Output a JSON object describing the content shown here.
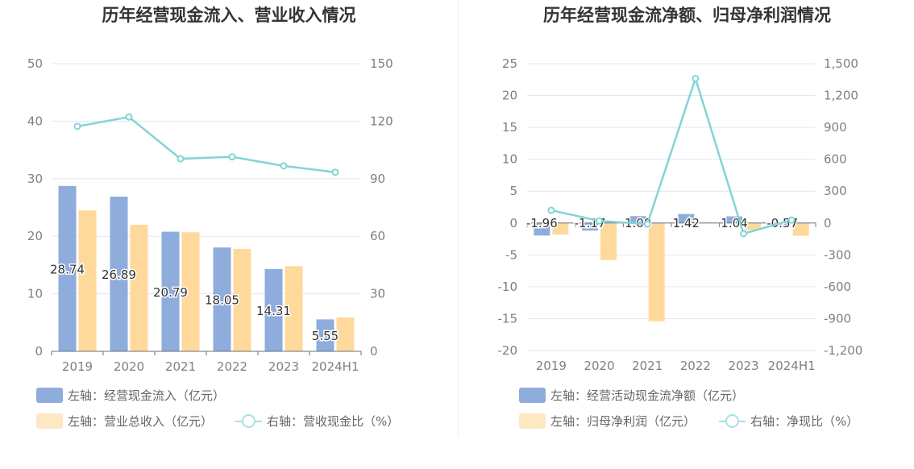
{
  "colors": {
    "bar_blue": "#8eacdc",
    "bar_orange": "#ffd99b",
    "line": "#83d4d8",
    "legend_orange": "#fde8c4",
    "legend_line": "#a9e0e6",
    "grid": "#e3e6f0",
    "axis_text": "#808080",
    "title": "#333333"
  },
  "left": {
    "title": "历年经营现金流入、营业收入情况",
    "legend": {
      "blue": "左轴：经营现金流入（亿元）",
      "orange": "左轴：营业总收入（亿元）",
      "line": "右轴：营收现金比（%）"
    }
  },
  "right": {
    "title": "历年经营现金流净额、归母净利润情况",
    "legend": {
      "blue": "左轴：经营活动现金流净额（亿元）",
      "orange": "左轴：归母净利润（亿元）",
      "line": "右轴：净现比（%）"
    }
  },
  "chart_data": [
    {
      "type": "bar",
      "title": "历年经营现金流入、营业收入情况",
      "categories": [
        "2019",
        "2020",
        "2021",
        "2022",
        "2023",
        "2024H1"
      ],
      "y_left": {
        "min": 0,
        "max": 50,
        "ticks": [
          "0",
          "10",
          "20",
          "30",
          "40",
          "50"
        ]
      },
      "y_right": {
        "min": 0,
        "max": 150,
        "ticks": [
          "0",
          "30",
          "60",
          "90",
          "120",
          "150"
        ]
      },
      "series": [
        {
          "name": "左轴：经营现金流入（亿元）",
          "axis": "left",
          "kind": "bar",
          "color": "#8eacdc",
          "values": [
            28.74,
            26.89,
            20.79,
            18.05,
            14.31,
            5.55
          ],
          "labels": [
            "28.74",
            "26.89",
            "20.79",
            "18.05",
            "14.31",
            "5.55"
          ]
        },
        {
          "name": "左轴：营业总收入（亿元）",
          "axis": "left",
          "kind": "bar",
          "color": "#ffd99b",
          "values": [
            24.5,
            22.0,
            20.7,
            17.8,
            14.8,
            5.9
          ]
        },
        {
          "name": "右轴：营收现金比（%）",
          "axis": "right",
          "kind": "line",
          "color": "#83d4d8",
          "values": [
            117.3,
            122.2,
            100.4,
            101.4,
            96.7,
            93.4
          ]
        }
      ],
      "grid": true,
      "legend_position": "bottom-left"
    },
    {
      "type": "bar",
      "title": "历年经营现金流净额、归母净利润情况",
      "categories": [
        "2019",
        "2020",
        "2021",
        "2022",
        "2023",
        "2024H1"
      ],
      "y_left": {
        "min": -20,
        "max": 25,
        "ticks": [
          "-20",
          "-15",
          "-10",
          "-5",
          "0",
          "5",
          "10",
          "15",
          "20",
          "25"
        ]
      },
      "y_right": {
        "min": -1200,
        "max": 1500,
        "ticks": [
          "-1,200",
          "-900",
          "-600",
          "-300",
          "0",
          "300",
          "600",
          "900",
          "1,200",
          "1,500"
        ]
      },
      "series": [
        {
          "name": "左轴：经营活动现金流净额（亿元）",
          "axis": "left",
          "kind": "bar",
          "color": "#8eacdc",
          "values": [
            -1.96,
            -1.17,
            1.08,
            1.42,
            1.04,
            -0.57
          ],
          "labels": [
            "-1.96",
            "-1.17",
            "1.08",
            "1.42",
            "1.04",
            "-0.57"
          ]
        },
        {
          "name": "左轴：归母净利润（亿元）",
          "axis": "left",
          "kind": "bar",
          "color": "#ffd99b",
          "values": [
            -1.8,
            -5.8,
            -15.4,
            0.1,
            -1.1,
            -2.0
          ]
        },
        {
          "name": "右轴：净现比（%）",
          "axis": "right",
          "kind": "line",
          "color": "#83d4d8",
          "values": [
            120,
            20,
            -10,
            1360,
            -100,
            28
          ]
        }
      ],
      "grid": true,
      "legend_position": "bottom-left"
    }
  ]
}
